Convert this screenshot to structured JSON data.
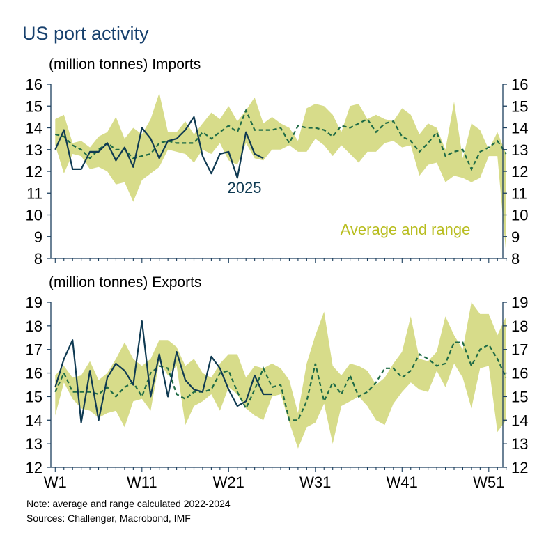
{
  "title": "US port activity",
  "note": "Note: average and range calculated 2022-2024",
  "sources": "Sources: Challenger, Macrobond, IMF",
  "colors": {
    "axis": "#1c3f5e",
    "range": "#d7dc8a",
    "average": "#1f6b46",
    "current": "#0f3a52",
    "range_label": "#b8bd1f"
  },
  "x_ticks": [
    "W1",
    "W11",
    "W21",
    "W31",
    "W41",
    "W51"
  ],
  "chart_data": [
    {
      "type": "line",
      "panel": "imports",
      "ylabel": "(million tonnes) Imports",
      "ylim": [
        8,
        16
      ],
      "yticks": [
        8,
        9,
        10,
        11,
        12,
        13,
        14,
        15,
        16
      ],
      "x_weeks": 53,
      "range_label": "Average and range",
      "current_label": "2025",
      "series": [
        {
          "name": "Range low",
          "role": "range_low",
          "values": [
            13.2,
            11.9,
            12.8,
            12.7,
            12.1,
            12.2,
            12.0,
            11.4,
            11.5,
            10.6,
            11.6,
            11.9,
            12.2,
            13.0,
            12.9,
            12.8,
            12.4,
            13.0,
            12.8,
            13.3,
            12.5,
            12.3,
            13.3,
            12.6,
            12.5,
            13.0,
            13.0,
            13.2,
            12.9,
            12.9,
            13.5,
            13.2,
            12.7,
            13.2,
            12.8,
            12.4,
            12.9,
            12.9,
            13.3,
            13.4,
            13.1,
            13.2,
            11.8,
            12.3,
            12.4,
            11.5,
            11.8,
            11.7,
            11.5,
            11.7,
            12.7,
            12.7,
            8.2
          ]
        },
        {
          "name": "Range high",
          "role": "range_high",
          "values": [
            14.4,
            14.6,
            13.3,
            13.4,
            13.1,
            13.6,
            13.8,
            14.5,
            13.5,
            14.0,
            13.7,
            14.4,
            15.6,
            13.8,
            13.8,
            14.3,
            13.7,
            14.2,
            14.7,
            14.4,
            15.0,
            14.3,
            14.8,
            15.4,
            14.2,
            14.5,
            14.2,
            14.0,
            13.4,
            14.9,
            15.1,
            15.0,
            14.6,
            13.8,
            15.0,
            15.1,
            14.4,
            14.6,
            14.4,
            14.3,
            14.9,
            14.6,
            13.7,
            14.2,
            14.0,
            13.0,
            15.2,
            12.6,
            14.2,
            13.9,
            13.0,
            13.8,
            12.8
          ]
        },
        {
          "name": "Average",
          "role": "average",
          "values": [
            13.7,
            13.6,
            13.2,
            13.0,
            12.6,
            13.0,
            13.3,
            13.0,
            13.0,
            12.6,
            12.7,
            12.8,
            13.3,
            13.4,
            13.3,
            13.3,
            13.3,
            13.8,
            13.5,
            13.8,
            14.1,
            13.8,
            14.8,
            13.9,
            13.9,
            13.9,
            14.0,
            13.3,
            14.1,
            14.0,
            14.0,
            13.9,
            13.6,
            14.1,
            14.0,
            14.2,
            14.4,
            13.8,
            14.2,
            14.3,
            13.6,
            13.4,
            12.9,
            13.3,
            13.8,
            12.7,
            12.9,
            13.0,
            12.1,
            12.9,
            13.1,
            13.4,
            12.8
          ]
        },
        {
          "name": "2025",
          "role": "current",
          "values": [
            13.0,
            13.9,
            12.1,
            12.1,
            12.9,
            12.9,
            13.3,
            12.5,
            13.1,
            12.2,
            14.0,
            13.5,
            12.6,
            13.4,
            13.5,
            13.9,
            14.5,
            12.7,
            11.9,
            12.8,
            12.9,
            11.7,
            13.8,
            12.8,
            12.6
          ]
        }
      ]
    },
    {
      "type": "line",
      "panel": "exports",
      "ylabel": "(million tonnes) Exports",
      "ylim": [
        12,
        19
      ],
      "yticks": [
        12,
        13,
        14,
        15,
        16,
        17,
        18,
        19
      ],
      "x_weeks": 53,
      "series": [
        {
          "name": "Range low",
          "role": "range_low",
          "values": [
            14.2,
            15.6,
            14.9,
            14.5,
            14.4,
            14.1,
            14.3,
            14.4,
            13.7,
            14.8,
            14.9,
            14.4,
            16.5,
            15.9,
            16.3,
            13.8,
            14.6,
            14.8,
            15.1,
            14.4,
            15.4,
            15.1,
            14.5,
            14.2,
            14.0,
            15.0,
            15.1,
            13.9,
            12.8,
            13.7,
            13.9,
            14.7,
            13.0,
            14.6,
            14.8,
            15.0,
            14.6,
            14.0,
            13.8,
            14.7,
            15.2,
            15.6,
            15.3,
            15.2,
            16.1,
            15.4,
            16.4,
            15.8,
            14.5,
            16.2,
            16.3,
            13.5,
            14.0
          ]
        },
        {
          "name": "Range high",
          "role": "range_high",
          "values": [
            15.9,
            16.3,
            15.8,
            15.9,
            16.5,
            15.7,
            16.0,
            16.6,
            17.3,
            16.6,
            16.3,
            16.6,
            17.4,
            17.4,
            17.1,
            16.3,
            16.6,
            16.0,
            15.8,
            16.4,
            16.8,
            16.8,
            15.8,
            16.3,
            16.2,
            16.4,
            16.2,
            15.7,
            14.3,
            16.4,
            17.6,
            18.6,
            16.3,
            15.9,
            16.4,
            16.3,
            16.1,
            15.5,
            15.8,
            16.4,
            16.9,
            18.4,
            16.6,
            16.5,
            16.9,
            18.4,
            17.6,
            17.0,
            19.0,
            18.5,
            18.5,
            17.6,
            18.4
          ]
        },
        {
          "name": "Average",
          "role": "average",
          "values": [
            15.2,
            16.0,
            15.2,
            15.2,
            15.2,
            15.1,
            15.4,
            15.0,
            15.4,
            15.6,
            15.0,
            16.0,
            16.3,
            16.2,
            15.1,
            14.9,
            15.2,
            15.2,
            15.3,
            16.0,
            16.1,
            15.2,
            14.5,
            15.3,
            16.2,
            15.4,
            15.5,
            14.0,
            14.0,
            14.8,
            16.4,
            14.8,
            15.6,
            15.1,
            15.9,
            15.0,
            15.2,
            15.6,
            16.2,
            16.2,
            15.8,
            16.1,
            16.8,
            16.6,
            16.3,
            16.4,
            17.3,
            17.3,
            16.3,
            17.0,
            17.2,
            16.6,
            15.8
          ]
        },
        {
          "name": "2025",
          "role": "current",
          "values": [
            15.4,
            16.6,
            17.4,
            13.9,
            16.1,
            14.0,
            15.8,
            16.4,
            16.1,
            15.5,
            18.2,
            15.0,
            16.8,
            15.0,
            16.9,
            15.7,
            15.3,
            15.2,
            16.7,
            16.2,
            15.3,
            14.6,
            14.8,
            15.9,
            15.1,
            15.1
          ]
        }
      ]
    }
  ]
}
